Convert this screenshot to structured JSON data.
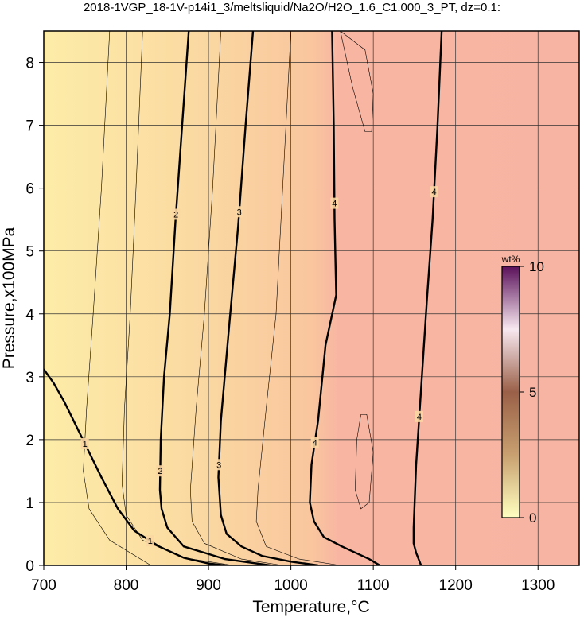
{
  "chart_data": {
    "type": "contour",
    "title": "2018-1VGP_18-1V-p14i1_3/meltsliquid/Na2O/H2O_1.6_C1.000_3_PT, dz=0.1:",
    "xlabel": "Temperature,°C",
    "ylabel": "Pressure,x100MPa",
    "xlim": [
      700,
      1350
    ],
    "ylim": [
      0,
      8.5
    ],
    "xticks": [
      700,
      800,
      900,
      1000,
      1100,
      1200,
      1300
    ],
    "yticks": [
      0,
      1,
      2,
      3,
      4,
      5,
      6,
      7,
      8
    ],
    "grid": true,
    "contours": [
      {
        "level": 1,
        "x": [
          700,
          712,
          725,
          740,
          755,
          770,
          790,
          810,
          840,
          870,
          900,
          920
        ],
        "y": [
          3.12,
          2.9,
          2.6,
          2.2,
          1.8,
          1.4,
          0.9,
          0.55,
          0.3,
          0.12,
          0.03,
          0
        ]
      },
      {
        "level": 2,
        "x": [
          876,
          868,
          860,
          853,
          846,
          842,
          841,
          843,
          850,
          870,
          920,
          975
        ],
        "y": [
          8.5,
          7,
          5.5,
          4,
          3,
          2,
          1.2,
          0.9,
          0.6,
          0.3,
          0.1,
          0
        ]
      },
      {
        "level": 3,
        "x": [
          954,
          945,
          936,
          925,
          915,
          912,
          915,
          922,
          940,
          965,
          1000,
          1033
        ],
        "y": [
          8.5,
          7,
          5.4,
          3.8,
          2.3,
          1.4,
          0.8,
          0.5,
          0.3,
          0.15,
          0.06,
          0
        ]
      },
      {
        "level": 4,
        "x": [
          1050,
          1052,
          1053,
          1055,
          1042,
          1033,
          1025,
          1023,
          1028,
          1040,
          1062,
          1095,
          1108
        ],
        "y": [
          8.5,
          7,
          5.5,
          4.3,
          3.5,
          2.3,
          1.6,
          1.0,
          0.7,
          0.45,
          0.3,
          0.1,
          0
        ]
      },
      {
        "level": 4,
        "x": [
          1183,
          1178,
          1172,
          1165,
          1158,
          1152,
          1149,
          1149,
          1152,
          1158
        ],
        "y": [
          8.5,
          7,
          5.5,
          4.2,
          2.8,
          1.6,
          0.6,
          0.35,
          0.2,
          0
        ]
      }
    ],
    "minor_contours": [
      {
        "x": [
          780,
          770,
          760,
          752,
          748,
          755,
          780,
          830
        ],
        "y": [
          8.5,
          6,
          4,
          2.5,
          1.5,
          0.9,
          0.4,
          0
        ]
      },
      {
        "x": [
          820,
          812,
          805,
          798,
          795,
          800,
          820,
          870,
          930
        ],
        "y": [
          8.5,
          6,
          4,
          2.5,
          1.3,
          0.8,
          0.4,
          0.12,
          0
        ]
      },
      {
        "x": [
          915,
          905,
          895,
          885,
          878,
          880,
          895,
          940,
          990
        ],
        "y": [
          8.5,
          6,
          4,
          2.5,
          1.2,
          0.7,
          0.35,
          0.1,
          0
        ]
      },
      {
        "x": [
          1000,
          990,
          982,
          970,
          960,
          958,
          970,
          1010,
          1060
        ],
        "y": [
          8.5,
          6,
          4,
          2.5,
          1.2,
          0.7,
          0.3,
          0.1,
          0
        ]
      },
      {
        "x": [
          1085,
          1080,
          1078,
          1085,
          1095,
          1100,
          1092,
          1085
        ],
        "y": [
          2.4,
          2,
          1.2,
          0.9,
          1,
          1.8,
          2.4,
          2.4
        ]
      },
      {
        "x": [
          1060,
          1075,
          1090,
          1098,
          1100,
          1090,
          1060
        ],
        "y": [
          8.5,
          7.6,
          6.9,
          6.9,
          7.5,
          8.2,
          8.5
        ]
      }
    ],
    "colorbar": {
      "label": "wt%",
      "lim": [
        0,
        10
      ],
      "ticks": [
        0,
        5,
        10
      ],
      "colors": [
        "#ffffc0",
        "#c8a070",
        "#9a6048",
        "#f8e8f0",
        "#5a105a"
      ]
    }
  }
}
